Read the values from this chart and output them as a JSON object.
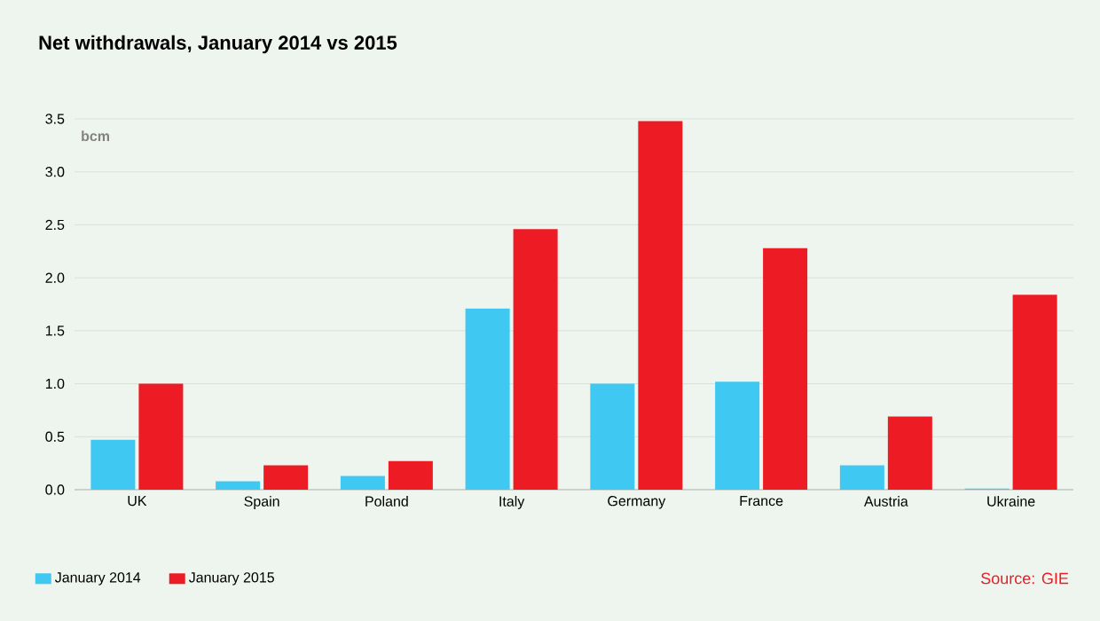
{
  "chart_data": {
    "type": "bar",
    "title": "Net withdrawals, January 2014 vs 2015",
    "ylabel": "bcm",
    "categories": [
      "UK",
      "Spain",
      "Poland",
      "Italy",
      "Germany",
      "France",
      "Austria",
      "Ukraine"
    ],
    "series": [
      {
        "name": "January 2014",
        "color": "#3fc8f2",
        "values": [
          0.47,
          0.08,
          0.13,
          1.71,
          1.0,
          1.02,
          0.23,
          0.01
        ]
      },
      {
        "name": "January 2015",
        "color": "#ed1c24",
        "values": [
          1.0,
          0.23,
          0.27,
          2.46,
          3.48,
          2.28,
          0.69,
          1.84
        ]
      }
    ],
    "ylim": [
      0,
      3.5
    ],
    "yticks": [
      {
        "value": 0,
        "label": "0.0"
      },
      0.5,
      {
        "value": 1,
        "label": "1.0"
      },
      1.5,
      {
        "value": 2,
        "label": "2.0"
      },
      2.5,
      {
        "value": 3,
        "label": "3.0"
      },
      3.5
    ],
    "grid": "y",
    "legend": "bottom left",
    "annotations": [
      "Source: GIE"
    ]
  }
}
